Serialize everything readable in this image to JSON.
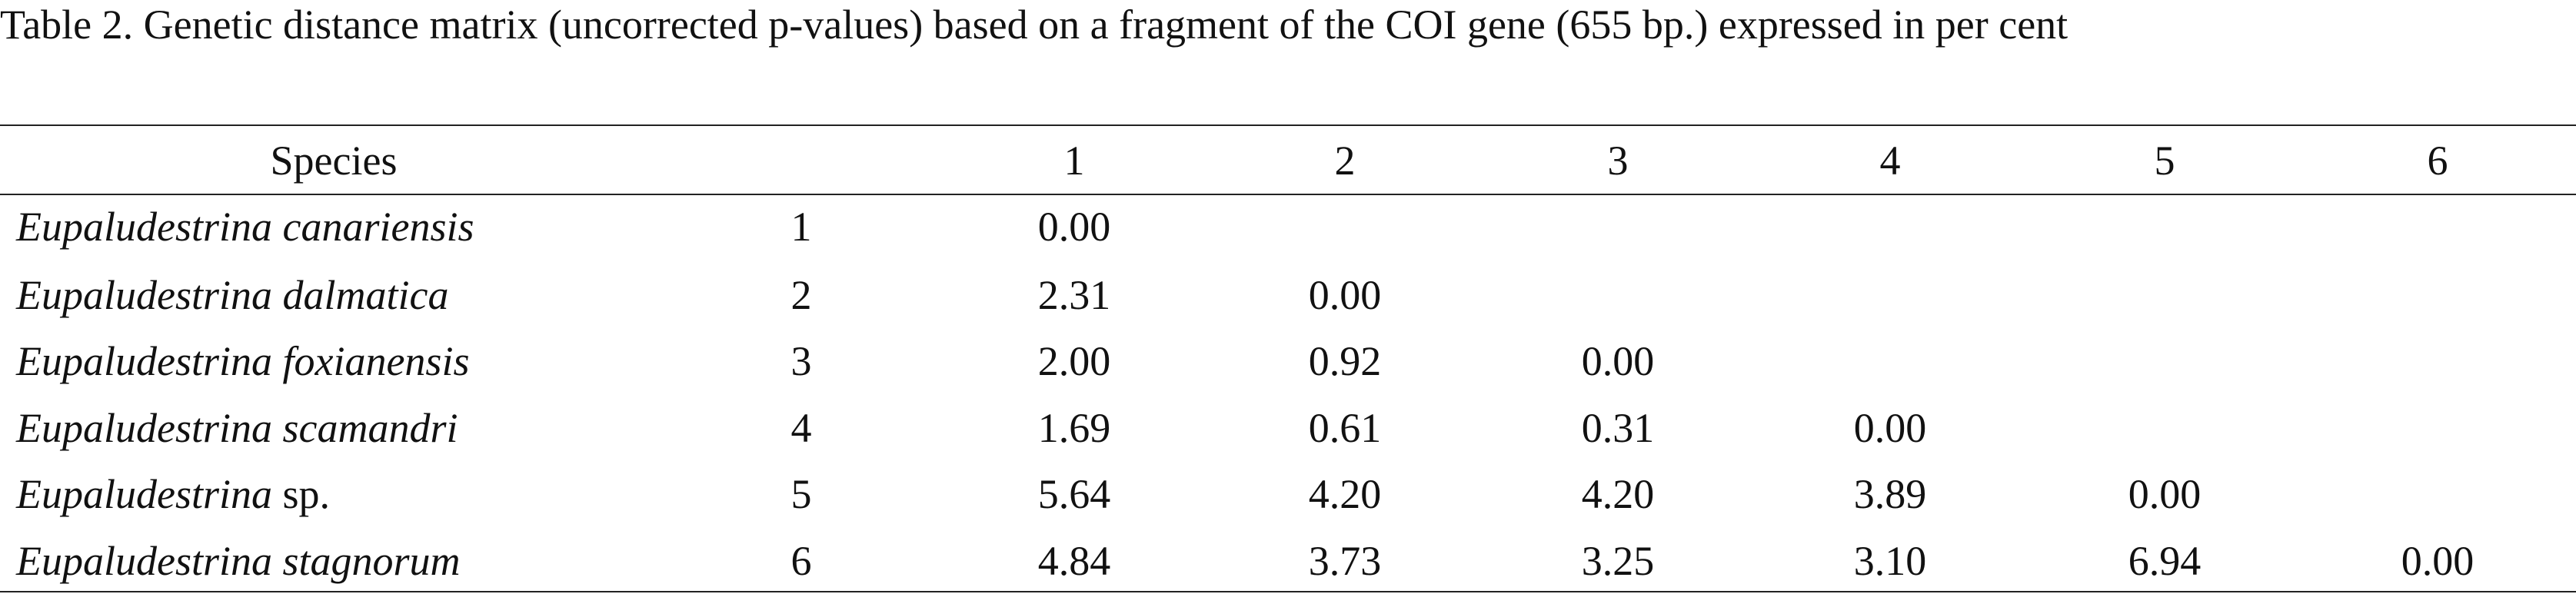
{
  "table": {
    "caption": "Table 2.  Genetic distance matrix (uncorrected p-values) based on a fragment of the COI gene (655 bp.) expressed in per cent",
    "header": {
      "species": "Species",
      "numbers": [
        "1",
        "2",
        "3",
        "4",
        "5",
        "6"
      ]
    },
    "rows": [
      {
        "species": {
          "italic": "Eupaludestrina canariensis"
        },
        "number": "1",
        "values": [
          "0.00"
        ]
      },
      {
        "species": {
          "italic": "Eupaludestrina dalmatica"
        },
        "number": "2",
        "values": [
          "2.31",
          "0.00"
        ]
      },
      {
        "species": {
          "italic": "Eupaludestrina foxianensis"
        },
        "number": "3",
        "values": [
          "2.00",
          "0.92",
          "0.00"
        ]
      },
      {
        "species": {
          "italic": "Eupaludestrina scamandri"
        },
        "number": "4",
        "values": [
          "1.69",
          "0.61",
          "0.31",
          "0.00"
        ]
      },
      {
        "species": {
          "italic": "Eupaludestrina",
          "roman": "sp."
        },
        "number": "5",
        "values": [
          "5.64",
          "4.20",
          "4.20",
          "3.89",
          "0.00"
        ]
      },
      {
        "species": {
          "italic": "Eupaludestrina stagnorum"
        },
        "number": "6",
        "values": [
          "4.84",
          "3.73",
          "3.25",
          "3.10",
          "6.94",
          "0.00"
        ]
      }
    ]
  }
}
